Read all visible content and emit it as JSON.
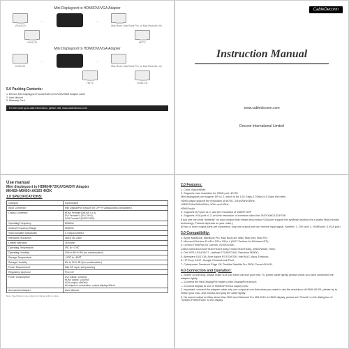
{
  "q1": {
    "title1": "Mini Displayport to HDMI/DVI/VGA Adapter",
    "title2": "Mini Displayport to HDMI/DVI/VGA Adapter",
    "labels": {
      "vga": "VGA/LCD",
      "dvi": "DVI/LCD",
      "hdtv": "HDTV",
      "mac": "Mac Book,\nMac Book Pro,\nor Mac Book Air,\netc"
    },
    "packTitle": "5.0 Packing Contents:",
    "pack1": "1. Deconn Mini Displayport Thunderbolt to DVI/VGA/HDMI Adapter cable",
    "pack2": "2. User Manual",
    "pack3": "3. Warranty Card",
    "footer": "For the most up-to-date information, please visit:\nwww.cabledeconn.com"
  },
  "q2": {
    "logo": "CableDeconn",
    "manual": "Instruction Manual",
    "url": "www.cabledeconn.com",
    "company": "Deconn International Limited"
  },
  "q3": {
    "head": "Use manual",
    "sub": "Mini displayport to HDMI(4K*2K)/VGA/DVI Adapter\nM0402+M0403+A0103 4K2K",
    "sec": "1.0 SPECIFICATIONS:",
    "rows": [
      [
        "Category",
        "Input/Output"
      ],
      [
        "Input Connector",
        "Mini DisplayPort (require for DP++)*2(backwards compatible))"
      ],
      [
        "Output Connector",
        "HDMI Female*1(HDMI V1.4)\nDVI Female*1 (DVI 24+5)\nVGA Female*1(1920*1200)"
      ],
      [
        "Operating Frequency",
        "50/60Hz"
      ],
      [
        "Vertical Frequency Range",
        "50/60Hz"
      ],
      [
        "Video Amplifier Bandwidth",
        "2.7Gbps/225MHz"
      ],
      [
        "Interlaced (50&60Hz)",
        "480i,576i,1080i"
      ],
      [
        "Limited Warranty",
        "18 Month"
      ],
      [
        "Operating Temperature",
        "0℃ to +70℃"
      ],
      [
        "Operating Humidity",
        "10% to 85 % RH (no condensation)"
      ],
      [
        "Storage Temperature",
        "-10℃ to +80℃"
      ],
      [
        "Storage Humidity",
        "5% to 90 % RH (no condensation)"
      ],
      [
        "Power Requirement",
        "Mini DP input, self-powering"
      ],
      [
        "Regulatory Approval",
        "FCC,CE"
      ],
      [
        "Power consumption",
        "DVI output: ≤300mA\nHDMI output: ≤400mA\nVGA output: ≤600mA\nAll output no connection, output display≤20mA"
      ],
      [
        "Accessories Adapter",
        "User Manual"
      ]
    ],
    "note": "Note: Specifications are subject to change without notice."
  },
  "q4": {
    "sec_feat": "2.0 Features:",
    "feat": [
      "1. Color: Black/White",
      "2. Supports max resolution for HDMI port: 4K*2K",
      "Mini displayport port support DP v1.2, which is for 1.62 Gbps,2.7Gbps,5.4 Gbps link rates",
      "HDMI output support the resolution of 4K*2K, 24Hz/25Hz/30Hz,",
      "1080P,24Hz/50Hz/60Hz,.50Hz and 60Hz",
      "HDMI Audio",
      "3. Supports DVI port v1.0, and the resolution of 1080P/720P",
      "4. Supports VGA port v1.3, and the resolution of common video like 1920*1080,1024*768",
      "If you see the word \"eyefinity\" on your product that means the product VGA port support the eyefinity function,it is a useful Multi-monitor technology. Product depends on your order;)",
      "(If two or more output ports are connected, only one output port can receive input signal. Number: 1. DVI port; 2. HDMI port; 3.VGA port.)"
    ],
    "sec_comp": "3.0 Compatibility:",
    "comp": [
      "1. Apple MacBook, MacBook Pro, Mac Book Air, iMac, Mac mini, Mac Pro;",
      "2. Microsoft Surface Pro/Pro 2/Pro 3/Pro 4 (NOT Surface for Windows RT);",
      "3. Lenovo ThinkPad X1 Carbon, X230/X240s;",
      "L430/L440/L530/L540/T430/T440/T440p/T440s/T530/T540p, W530/W540, Helix;",
      "4. Dell XPS 13/14/15/17, Latitude E7240/E7440, Precision M3800;",
      "5. Alienware 14/17/18; Acer Aspire R7/S7/W700; Intel NUC; Asus Zenbook;",
      "6. HP Envy 14/17; Google Chromebook Pixel;",
      "7. Cyberpower Zeusbook Edge X6; Toshiba Satellite Pro S500, Tecra M11/A11"
    ],
    "sec_conn": "4.0 Connection and Operation:",
    "conn": [
      "1. Before connecting, please make sure you have connect your mac TV, power cable tightly, please check you have connected the adapter tightly.",
      "— Connect the Mini DisplayPort male to Mini DisplayPort device;",
      "— Connect display to one of HDMI/DVI/VGA output ports;",
      "2. Important: connect the adapter cable only one output at one time,when you want to use the resolution of HDMI 4K*2K, please try to restart your mac, and monitor,and plug the cable tightly.",
      "3. No sound output on iMac since Mac 2009 and Macbook Pro Mid 2010 to HDMI display, please set \"Sound\" on the dialog box of \"System Preferences\" to the display"
    ]
  }
}
